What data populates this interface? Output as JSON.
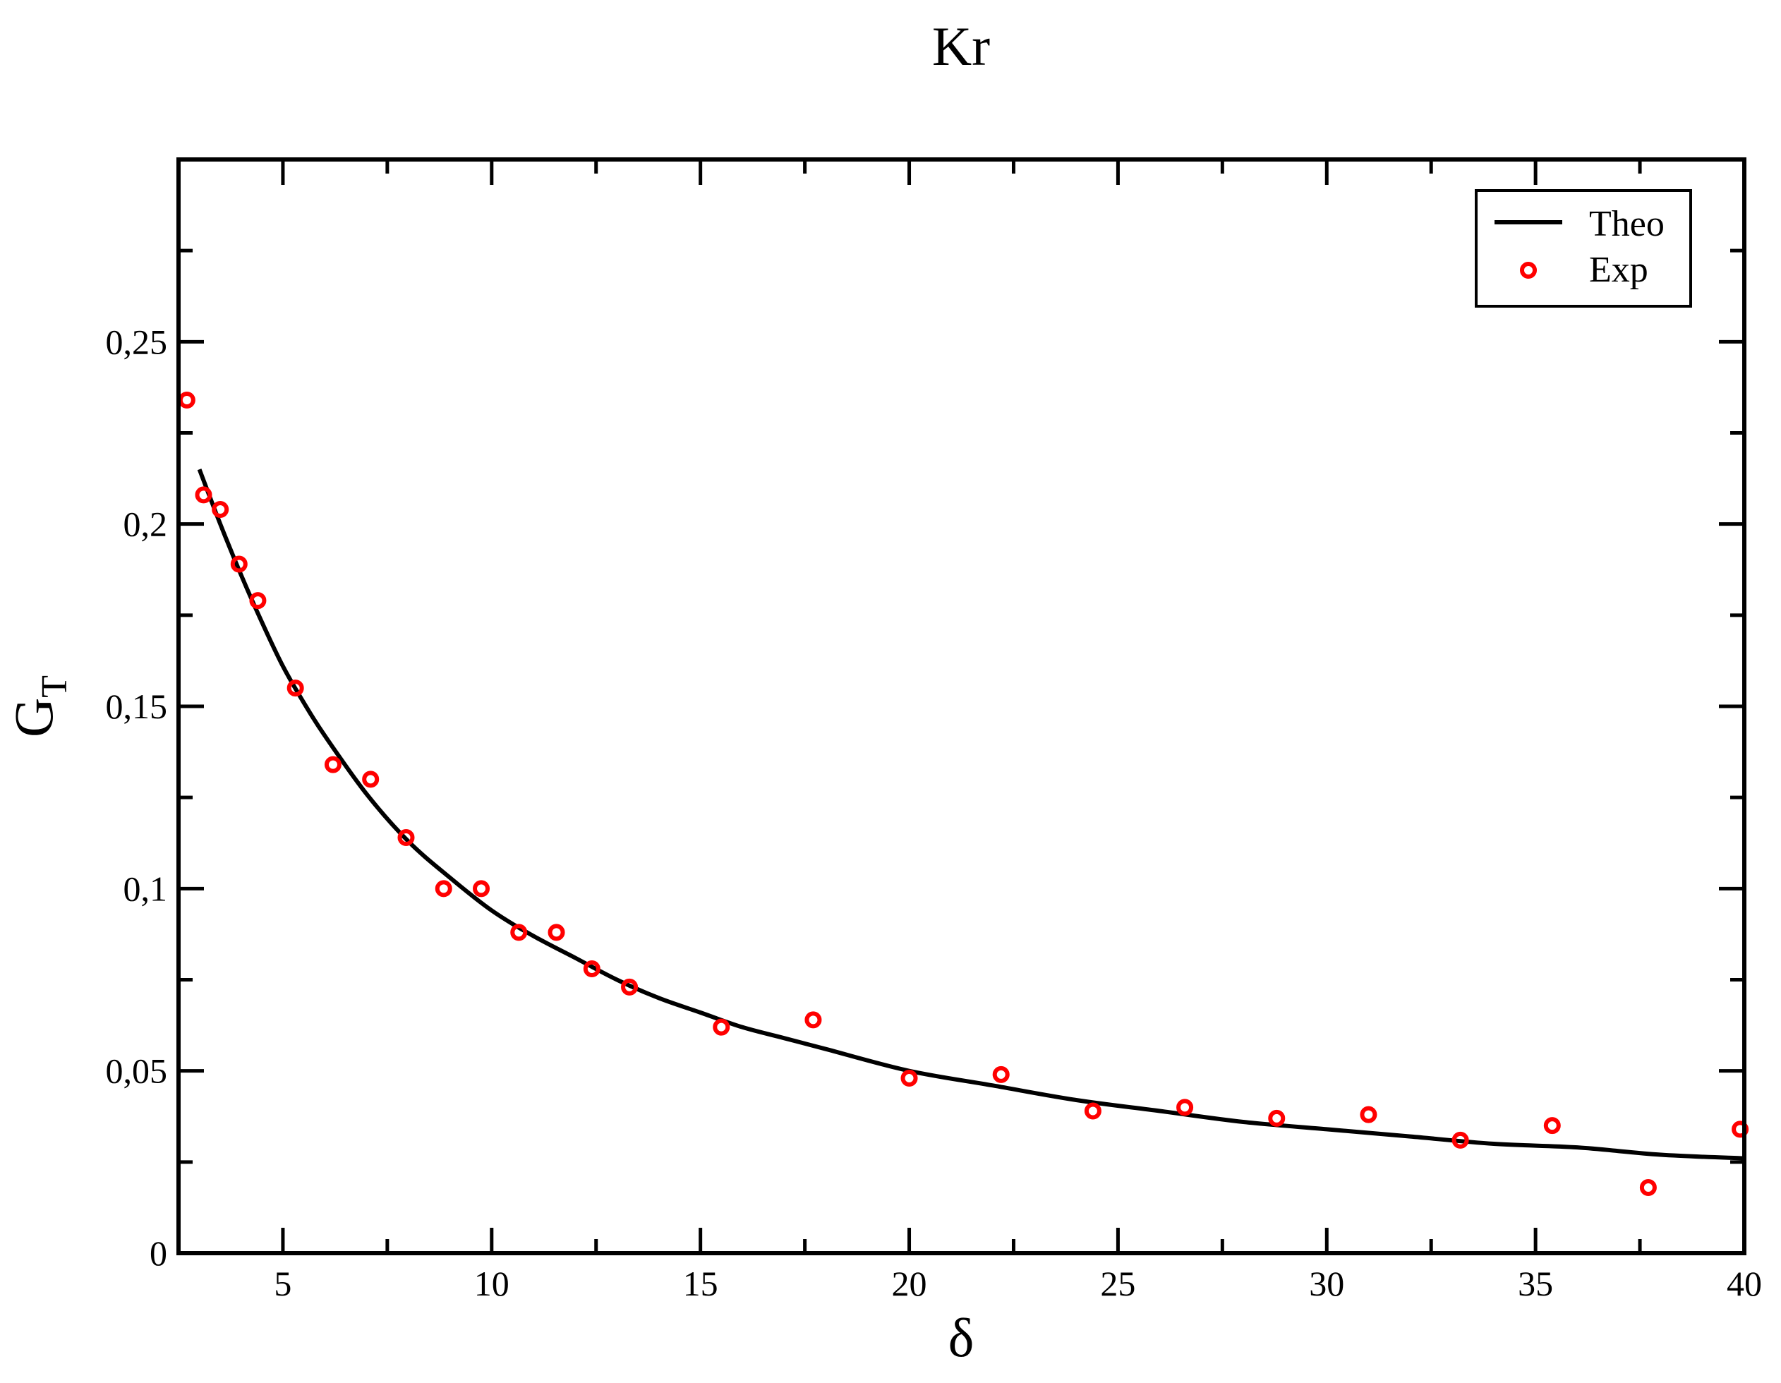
{
  "chart_data": {
    "type": "scatter",
    "title": "Kr",
    "xlabel": "δ",
    "ylabel": {
      "main": "G",
      "subscript": "T"
    },
    "xlim": [
      2.5,
      40
    ],
    "ylim": [
      0,
      0.3
    ],
    "xticks": [
      5,
      10,
      15,
      20,
      25,
      30,
      35,
      40
    ],
    "xtick_labels": [
      "5",
      "10",
      "15",
      "20",
      "25",
      "30",
      "35",
      "40"
    ],
    "xminor_step": 2.5,
    "yticks": [
      0,
      0.05,
      0.1,
      0.15,
      0.2,
      0.25
    ],
    "ytick_labels": [
      "0",
      "0,05",
      "0,1",
      "0,15",
      "0,2",
      "0,25"
    ],
    "yminor_step": 0.025,
    "grid": false,
    "legend_position": "top-right",
    "series": [
      {
        "name": "Theo",
        "style": "line",
        "color": "#000000",
        "x": [
          3.0,
          3.5,
          4.0,
          4.5,
          5.0,
          5.5,
          6.0,
          7.0,
          8.0,
          9.0,
          10.0,
          11.0,
          12.0,
          13.0,
          14.0,
          15.0,
          16.0,
          17.0,
          18.0,
          20.0,
          22.0,
          24.0,
          26.0,
          28.0,
          30.0,
          32.0,
          34.0,
          36.0,
          38.0,
          40.0
        ],
        "y": [
          0.215,
          0.2,
          0.186,
          0.173,
          0.161,
          0.151,
          0.142,
          0.126,
          0.113,
          0.103,
          0.094,
          0.087,
          0.081,
          0.075,
          0.07,
          0.066,
          0.062,
          0.059,
          0.056,
          0.05,
          0.046,
          0.042,
          0.039,
          0.036,
          0.034,
          0.032,
          0.03,
          0.029,
          0.027,
          0.026
        ]
      },
      {
        "name": "Exp",
        "style": "marker",
        "marker": "open-circle",
        "color": "#ff0000",
        "x": [
          2.7,
          3.1,
          3.5,
          3.95,
          4.4,
          5.3,
          6.2,
          7.1,
          7.95,
          8.85,
          9.75,
          10.65,
          11.55,
          12.4,
          13.3,
          15.5,
          17.7,
          20.0,
          22.2,
          24.4,
          26.6,
          28.8,
          31.0,
          33.2,
          35.4,
          37.7,
          39.9
        ],
        "y": [
          0.234,
          0.208,
          0.204,
          0.189,
          0.179,
          0.155,
          0.134,
          0.13,
          0.114,
          0.1,
          0.1,
          0.088,
          0.088,
          0.078,
          0.073,
          0.062,
          0.064,
          0.048,
          0.049,
          0.039,
          0.04,
          0.037,
          0.038,
          0.031,
          0.035,
          0.018,
          0.034
        ]
      }
    ]
  }
}
